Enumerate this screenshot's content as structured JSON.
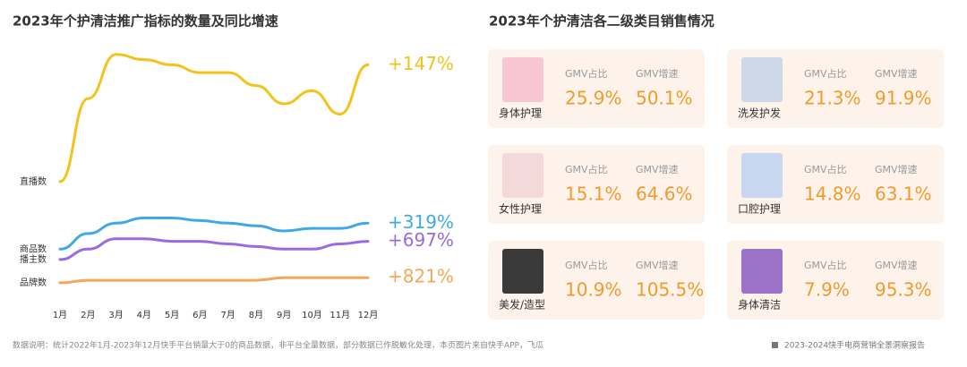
{
  "chart_data": {
    "type": "line",
    "title": "2023年个护清洁推广指标的数量及同比增速",
    "categories": [
      "1月",
      "2月",
      "3月",
      "4月",
      "5月",
      "6月",
      "7月",
      "8月",
      "9月",
      "10月",
      "11月",
      "12月"
    ],
    "ylim": [
      0,
      100
    ],
    "series": [
      {
        "name": "直播数",
        "color": "#f5c21b",
        "end_label": "+147%",
        "values": [
          49,
          81,
          98,
          96,
          94,
          91,
          91,
          86,
          79,
          84,
          75,
          94
        ]
      },
      {
        "name": "商品数",
        "color": "#3fa9e8",
        "end_label": "+319%",
        "values": [
          23,
          29,
          33,
          35,
          35,
          34,
          33,
          32,
          30,
          31,
          31,
          33
        ]
      },
      {
        "name": "播主数",
        "color": "#9a6ae0",
        "end_label": "+697%",
        "values": [
          19,
          23,
          27,
          27,
          26,
          26,
          25,
          24,
          23,
          23,
          25,
          26
        ]
      },
      {
        "name": "品牌数",
        "color": "#f5a65b",
        "end_label": "+821%",
        "values": [
          10,
          11,
          11,
          11,
          11,
          11,
          11,
          11,
          12,
          12,
          12,
          12
        ]
      }
    ]
  },
  "panel": {
    "title": "2023年个护清洁各二级类目销售情况",
    "cards": [
      {
        "name": "身体护理",
        "share_label": "GMV占比",
        "share": "25.9%",
        "growth_label": "GMV增速",
        "growth": "50.1%"
      },
      {
        "name": "洗发护发",
        "share_label": "GMV占比",
        "share": "21.3%",
        "growth_label": "GMV增速",
        "growth": "91.9%"
      },
      {
        "name": "女性护理",
        "share_label": "GMV占比",
        "share": "15.1%",
        "growth_label": "GMV增速",
        "growth": "64.6%"
      },
      {
        "name": "口腔护理",
        "share_label": "GMV占比",
        "share": "14.8%",
        "growth_label": "GMV增速",
        "growth": "63.1%"
      },
      {
        "name": "美发/造型",
        "share_label": "GMV占比",
        "share": "10.9%",
        "growth_label": "GMV增速",
        "growth": "105.5%"
      },
      {
        "name": "身体清洁",
        "share_label": "GMV占比",
        "share": "7.9%",
        "growth_label": "GMV增速",
        "growth": "95.3%"
      }
    ]
  },
  "footer": {
    "note": "数据说明：统计2022年1月-2023年12月快手平台销量大于0的商品数据，非平台全量数据，部分数据已作脱敏化处理，本页图片来自快手APP，飞瓜",
    "report": "2023-2024快手电商营销全景洞察报告"
  }
}
